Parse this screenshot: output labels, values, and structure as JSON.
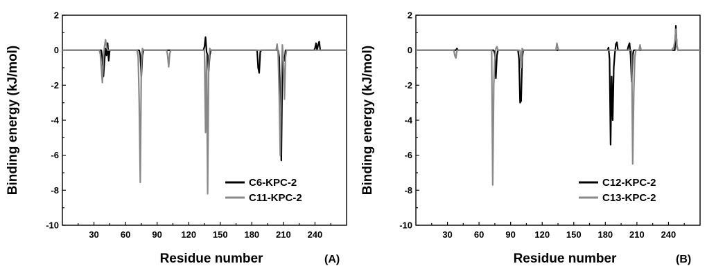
{
  "chart_data": [
    {
      "type": "line",
      "panel_label": "(A)",
      "xlabel": "Residue number",
      "ylabel": "Binding energy (kJ/mol)",
      "xlim": [
        0,
        270
      ],
      "ylim": [
        -10,
        2
      ],
      "xticks": [
        30,
        60,
        90,
        120,
        150,
        180,
        210,
        240
      ],
      "yticks": [
        -10,
        -8,
        -6,
        -4,
        -2,
        0,
        2
      ],
      "legend_position": "lower-right",
      "series": [
        {
          "name": "C6-KPC-2",
          "color": "#000000",
          "points": [
            [
              0,
              0
            ],
            [
              37,
              0
            ],
            [
              38,
              -0.5
            ],
            [
              39,
              -1.5
            ],
            [
              40,
              -0.6
            ],
            [
              41,
              0.1
            ],
            [
              42,
              -0.3
            ],
            [
              43,
              0.4
            ],
            [
              44,
              -0.6
            ],
            [
              45,
              0
            ],
            [
              73,
              0
            ],
            [
              74,
              -0.3
            ],
            [
              75,
              -1.5
            ],
            [
              76,
              -0.3
            ],
            [
              77,
              0
            ],
            [
              134,
              0
            ],
            [
              135,
              0.2
            ],
            [
              136,
              0.75
            ],
            [
              137,
              -0.1
            ],
            [
              138,
              -0.3
            ],
            [
              139,
              -1.2
            ],
            [
              140,
              -0.3
            ],
            [
              141,
              0
            ],
            [
              185,
              0
            ],
            [
              186,
              -1.0
            ],
            [
              187,
              -1.3
            ],
            [
              188,
              -0.1
            ],
            [
              189,
              0
            ],
            [
              205,
              0
            ],
            [
              206,
              -0.4
            ],
            [
              207,
              -3.6
            ],
            [
              208,
              -6.3
            ],
            [
              209,
              -1.0
            ],
            [
              210,
              -0.4
            ],
            [
              211,
              -0.6
            ],
            [
              212,
              0
            ],
            [
              239,
              0
            ],
            [
              240,
              0.1
            ],
            [
              241,
              0.4
            ],
            [
              242,
              0
            ],
            [
              243,
              0.3
            ],
            [
              244,
              0.5
            ],
            [
              245,
              0
            ],
            [
              270,
              0
            ]
          ]
        },
        {
          "name": "C11-KPC-2",
          "color": "#888888",
          "points": [
            [
              0,
              0
            ],
            [
              35,
              0
            ],
            [
              36,
              -0.2
            ],
            [
              37,
              -1.0
            ],
            [
              38,
              -1.85
            ],
            [
              39,
              -0.4
            ],
            [
              40,
              0.2
            ],
            [
              41,
              0.6
            ],
            [
              42,
              0.2
            ],
            [
              43,
              0
            ],
            [
              71,
              0
            ],
            [
              72,
              -0.4
            ],
            [
              73,
              -3.0
            ],
            [
              74,
              -7.55
            ],
            [
              75,
              -1.0
            ],
            [
              76,
              0.1
            ],
            [
              77,
              0
            ],
            [
              99,
              0
            ],
            [
              100,
              -0.3
            ],
            [
              101,
              -0.95
            ],
            [
              102,
              -0.2
            ],
            [
              103,
              0
            ],
            [
              135,
              0
            ],
            [
              136,
              -4.7
            ],
            [
              137,
              -0.3
            ],
            [
              138,
              -8.2
            ],
            [
              139,
              -1.0
            ],
            [
              140,
              0.1
            ],
            [
              141,
              0
            ],
            [
              203,
              0
            ],
            [
              204,
              0.35
            ],
            [
              205,
              -0.2
            ],
            [
              206,
              -2.6
            ],
            [
              207,
              -6.0
            ],
            [
              208,
              -1.6
            ],
            [
              209,
              0.3
            ],
            [
              210,
              -0.5
            ],
            [
              211,
              -2.8
            ],
            [
              212,
              -0.4
            ],
            [
              213,
              0
            ],
            [
              270,
              0
            ]
          ]
        }
      ]
    },
    {
      "type": "line",
      "panel_label": "(B)",
      "xlabel": "Residue number",
      "ylabel": "Binding energy (kJ/mol)",
      "xlim": [
        0,
        270
      ],
      "ylim": [
        -10,
        2
      ],
      "xticks": [
        30,
        60,
        90,
        120,
        150,
        180,
        210,
        240
      ],
      "yticks": [
        -10,
        -8,
        -6,
        -4,
        -2,
        0,
        2
      ],
      "legend_position": "lower-right",
      "series": [
        {
          "name": "C12-KPC-2",
          "color": "#000000",
          "points": [
            [
              0,
              0
            ],
            [
              38,
              0
            ],
            [
              39,
              0.1
            ],
            [
              40,
              0
            ],
            [
              74,
              0
            ],
            [
              75,
              -0.2
            ],
            [
              76,
              -1.6
            ],
            [
              77,
              -0.3
            ],
            [
              78,
              0
            ],
            [
              97,
              0
            ],
            [
              98,
              -0.5
            ],
            [
              99,
              -3.0
            ],
            [
              100,
              -2.9
            ],
            [
              101,
              -0.4
            ],
            [
              102,
              0
            ],
            [
              182,
              0
            ],
            [
              183,
              0.15
            ],
            [
              184,
              -0.5
            ],
            [
              185,
              -5.4
            ],
            [
              186,
              -1.5
            ],
            [
              187,
              -4.0
            ],
            [
              188,
              -1.0
            ],
            [
              189,
              -0.2
            ],
            [
              190,
              0.35
            ],
            [
              191,
              0.45
            ],
            [
              192,
              0
            ],
            [
              201,
              0
            ],
            [
              202,
              0.25
            ],
            [
              203,
              0.4
            ],
            [
              204,
              -0.3
            ],
            [
              205,
              -1.8
            ],
            [
              206,
              -0.3
            ],
            [
              207,
              0
            ],
            [
              246,
              0
            ],
            [
              247,
              1.4
            ],
            [
              248,
              0.2
            ],
            [
              249,
              0
            ],
            [
              270,
              0
            ]
          ]
        },
        {
          "name": "C13-KPC-2",
          "color": "#888888",
          "points": [
            [
              0,
              0
            ],
            [
              36,
              0
            ],
            [
              37,
              -0.3
            ],
            [
              38,
              -0.45
            ],
            [
              39,
              0
            ],
            [
              72,
              0
            ],
            [
              73,
              -7.7
            ],
            [
              74,
              -2.0
            ],
            [
              75,
              -0.5
            ],
            [
              76,
              0.1
            ],
            [
              77,
              0.2
            ],
            [
              78,
              0
            ],
            [
              99,
              0
            ],
            [
              100,
              -1.0
            ],
            [
              101,
              0.1
            ],
            [
              102,
              0
            ],
            [
              133,
              0
            ],
            [
              134,
              0.4
            ],
            [
              135,
              0.1
            ],
            [
              136,
              0
            ],
            [
              205,
              0
            ],
            [
              206,
              -6.5
            ],
            [
              207,
              -2.5
            ],
            [
              208,
              -0.4
            ],
            [
              209,
              0
            ],
            [
              212,
              0
            ],
            [
              213,
              0.3
            ],
            [
              214,
              0
            ],
            [
              243,
              0
            ],
            [
              244,
              0.1
            ],
            [
              245,
              0.15
            ],
            [
              246,
              0.5
            ],
            [
              247,
              1.2
            ],
            [
              248,
              0.3
            ],
            [
              249,
              0
            ],
            [
              270,
              0
            ]
          ]
        }
      ]
    }
  ]
}
